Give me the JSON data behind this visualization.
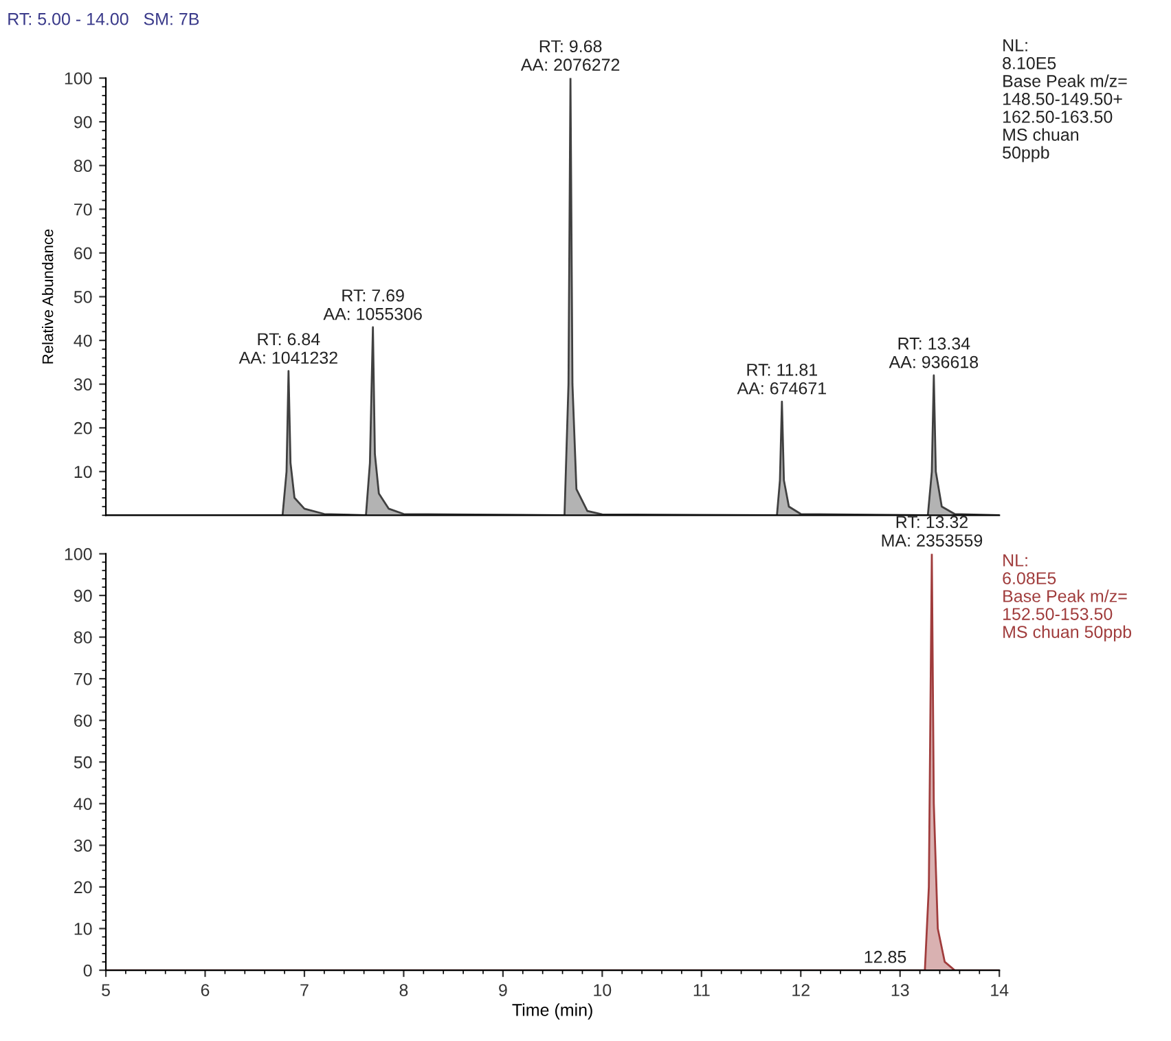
{
  "chart_data": [
    {
      "type": "area",
      "title": "RT: 5.00 - 14.00   SM: 7B",
      "ylabel": "Relative Abundance",
      "tick_labels": "y",
      "xlim": [
        5,
        14
      ],
      "ylim": [
        0,
        100
      ],
      "yticks": [
        10,
        20,
        30,
        40,
        50,
        60,
        70,
        80,
        90,
        100
      ],
      "series": [
        {
          "color": "#404040",
          "x": [
            5.0,
            6.78,
            6.82,
            6.84,
            6.86,
            6.9,
            7.0,
            7.2,
            7.62,
            7.66,
            7.69,
            7.71,
            7.75,
            7.85,
            8.0,
            9.62,
            9.66,
            9.68,
            9.7,
            9.74,
            9.85,
            10.0,
            11.76,
            11.79,
            11.81,
            11.83,
            11.88,
            12.0,
            13.28,
            13.32,
            13.34,
            13.36,
            13.42,
            13.55,
            14.0
          ],
          "values": [
            0,
            0,
            10,
            33,
            12,
            4,
            1.5,
            0.3,
            0,
            12,
            43,
            14,
            5,
            1.5,
            0.3,
            0,
            30,
            100,
            30,
            6,
            1,
            0.2,
            0,
            8,
            26,
            8,
            2,
            0.3,
            0,
            10,
            32,
            10,
            2,
            0.3,
            0
          ]
        }
      ],
      "annotations": [
        {
          "text": "RT: 6.84\nAA: 1041232",
          "x": 6.84,
          "y": 33
        },
        {
          "text": "RT: 7.69\nAA: 1055306",
          "x": 7.69,
          "y": 43
        },
        {
          "text": "RT: 9.68\nAA: 2076272",
          "x": 9.68,
          "y": 100
        },
        {
          "text": "RT: 11.81\nAA: 674671",
          "x": 11.81,
          "y": 26
        },
        {
          "text": "RT: 13.34\nAA: 936618",
          "x": 13.34,
          "y": 32
        },
        "NL:\n8.10E5\nBase Peak m/z=\n148.50-149.50+\n162.50-163.50\nMS chuan\n50ppb"
      ]
    },
    {
      "type": "area",
      "xlabel": "Time (min)",
      "xlim": [
        5,
        14
      ],
      "ylim": [
        0,
        100
      ],
      "xticks": [
        5,
        6,
        7,
        8,
        9,
        10,
        11,
        12,
        13,
        14
      ],
      "yticks": [
        0,
        10,
        20,
        30,
        40,
        50,
        60,
        70,
        80,
        90,
        100
      ],
      "series": [
        {
          "color": "#a03c3c",
          "x": [
            5.0,
            13.25,
            13.29,
            13.32,
            13.34,
            13.38,
            13.45,
            13.55,
            14.0
          ],
          "values": [
            0,
            0,
            20,
            100,
            40,
            10,
            2,
            0,
            0
          ]
        }
      ],
      "annotations": [
        {
          "text": "RT: 13.32\nMA: 2353559",
          "x": 13.32,
          "y": 100
        },
        {
          "text": "12.85",
          "x": 12.85,
          "y": 0
        },
        "NL:\n6.08E5\nBase Peak m/z=\n152.50-153.50\nMS chuan 50ppb"
      ]
    }
  ]
}
